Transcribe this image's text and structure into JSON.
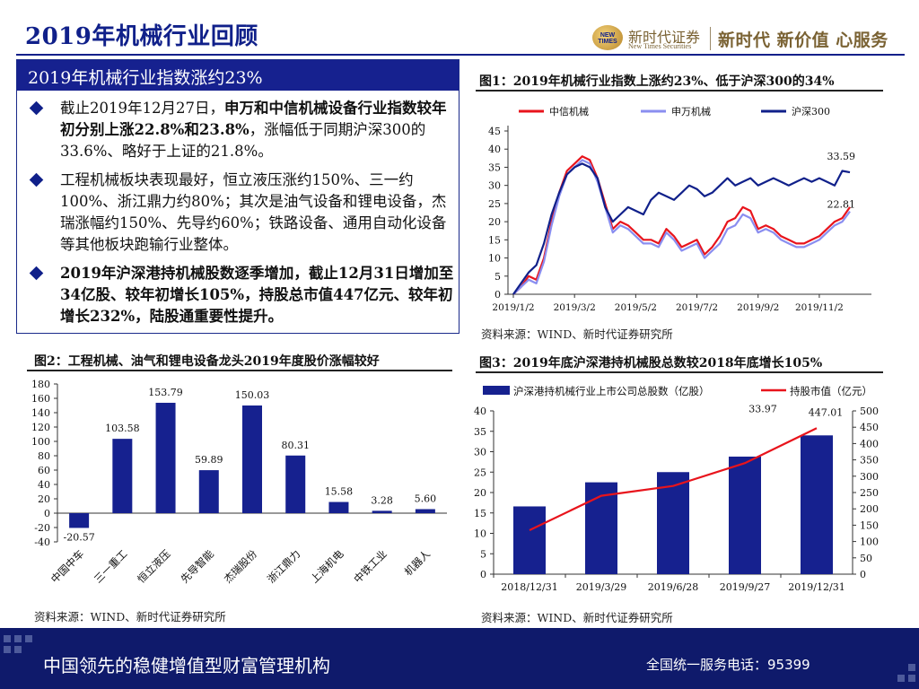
{
  "header": {
    "title": "2019年机械行业回顾",
    "logo_text": "NEW TIMES",
    "brand_name": "新时代证券",
    "brand_sub": "New Times Securities",
    "slogan": "新时代 新价值 心服务"
  },
  "summary": {
    "heading": "2019年机械行业指数涨约23%",
    "bullets": [
      {
        "parts": [
          {
            "text": "截止2019年12月27日，",
            "bold": false
          },
          {
            "text": "申万和中信机械设备行业指数较年初分别上涨22.8%和23.8%",
            "bold": true
          },
          {
            "text": "，涨幅低于同期沪深300的33.6%、略好于上证的21.8%。",
            "bold": false
          }
        ]
      },
      {
        "parts": [
          {
            "text": "工程机械板块表现最好，恒立液压涨约150%、三一约100%、浙江鼎力约80%；其次是油气设备和锂电设备，杰瑞涨幅约150%、先导约60%；铁路设备、通用自动化设备等其他板块跑输行业整体。",
            "bold": false
          }
        ]
      },
      {
        "parts": [
          {
            "text": "2019年沪深港持机械股数逐季增加，截止12月31日增加至34亿股、较年初增长105%，持股总市值447亿元、较年初增长232%，陆股通重要性提升。",
            "bold": true
          }
        ]
      }
    ]
  },
  "fig1": {
    "title": "图1：2019年机械行业指数上涨约23%、低于沪深300的34%",
    "source": "资料来源：WIND、新时代证券研究所"
  },
  "fig2": {
    "title": "图2：工程机械、油气和锂电设备龙头2019年度股价涨幅较好",
    "source": "资料来源：WIND、新时代证券研究所"
  },
  "fig3": {
    "title": "图3：2019年底沪深港持机械股总数较2018年底增长105%",
    "source": "资料来源：WIND、新时代证券研究所"
  },
  "footer": {
    "text": "中国领先的稳健增值型财富管理机构",
    "tel": "全国统一服务电话：95399"
  },
  "chart_data": [
    {
      "type": "line",
      "legend": [
        "中信机械",
        "申万机械",
        "沪深300"
      ],
      "colors": [
        "#e8141c",
        "#8a8ef0",
        "#10208a"
      ],
      "x_ticks": [
        "2019/1/2",
        "2019/3/2",
        "2019/5/2",
        "2019/7/2",
        "2019/9/2",
        "2019/11/2"
      ],
      "y_ticks": [
        "0",
        "5",
        "10",
        "15",
        "20",
        "25",
        "30",
        "35",
        "40",
        "45"
      ],
      "ylim": [
        0,
        45
      ],
      "legend_position": "top",
      "annotations": [
        "33.59",
        "22.81"
      ],
      "series": [
        {
          "name": "中信机械",
          "values": [
            0,
            2,
            5,
            4,
            10,
            20,
            28,
            34,
            36,
            38,
            37,
            32,
            25,
            18,
            20,
            19,
            17,
            15,
            15,
            14,
            18,
            16,
            13,
            14,
            15,
            11,
            13,
            16,
            20,
            21,
            24,
            23,
            18,
            19,
            18,
            16,
            15,
            14,
            14,
            15,
            16,
            18,
            20,
            21,
            24
          ]
        },
        {
          "name": "申万机械",
          "values": [
            0,
            2,
            4,
            3,
            9,
            19,
            27,
            33,
            35,
            37,
            36,
            31,
            24,
            17,
            19,
            18,
            16,
            14,
            14,
            13,
            17,
            15,
            12,
            13,
            14,
            10,
            12,
            14,
            18,
            19,
            22,
            21,
            17,
            18,
            17,
            15,
            14,
            13,
            13,
            14,
            15,
            17,
            19,
            20,
            22.81
          ]
        },
        {
          "name": "沪深300",
          "values": [
            0,
            3,
            6,
            8,
            14,
            22,
            28,
            33,
            35,
            36,
            35,
            32,
            24,
            20,
            22,
            24,
            23,
            22,
            26,
            28,
            27,
            26,
            28,
            30,
            29,
            27,
            28,
            30,
            32,
            30,
            31,
            32,
            30,
            31,
            32,
            31,
            30,
            31,
            32,
            31,
            32,
            31,
            30,
            34,
            33.59
          ]
        }
      ]
    },
    {
      "type": "bar",
      "categories": [
        "中国中车",
        "三一重工",
        "恒立液压",
        "先导智能",
        "杰瑞股份",
        "浙江鼎力",
        "上海机电",
        "中铁工业",
        "机器人"
      ],
      "values": [
        -20.57,
        103.58,
        153.79,
        59.89,
        150.03,
        80.31,
        15.58,
        3.28,
        5.6
      ],
      "value_labels": [
        "-20.57",
        "103.58",
        "153.79",
        "59.89",
        "150.03",
        "80.31",
        "15.58",
        "3.28",
        "5.60"
      ],
      "y_ticks": [
        "-40",
        "-20",
        "0",
        "20",
        "40",
        "60",
        "80",
        "100",
        "120",
        "140",
        "160",
        "180"
      ],
      "ylim": [
        -40,
        180
      ],
      "color": "#16218f"
    },
    {
      "type": "bar",
      "categories": [
        "2018/12/31",
        "2019/3/29",
        "2019/6/28",
        "2019/9/27",
        "2019/12/31"
      ],
      "series": [
        {
          "name": "沪深港持机械行业上市公司总股数（亿股）",
          "values": [
            16.6,
            22.5,
            25.0,
            28.8,
            34.0
          ],
          "axis": "left",
          "color": "#16218f"
        },
        {
          "name": "持股市值（亿元）",
          "values": [
            134.6,
            240,
            270,
            340,
            447.01
          ],
          "axis": "right",
          "color": "#e8141c"
        }
      ],
      "annotations": [
        "33.97",
        "447.01"
      ],
      "y_left_ticks": [
        "0",
        "5",
        "10",
        "15",
        "20",
        "25",
        "30",
        "35",
        "40"
      ],
      "y_right_ticks": [
        "0",
        "50",
        "100",
        "150",
        "200",
        "250",
        "300",
        "350",
        "400",
        "450",
        "500"
      ],
      "ylim_left": [
        0,
        40
      ],
      "ylim_right": [
        0,
        500
      ],
      "legend_position": "top"
    }
  ]
}
